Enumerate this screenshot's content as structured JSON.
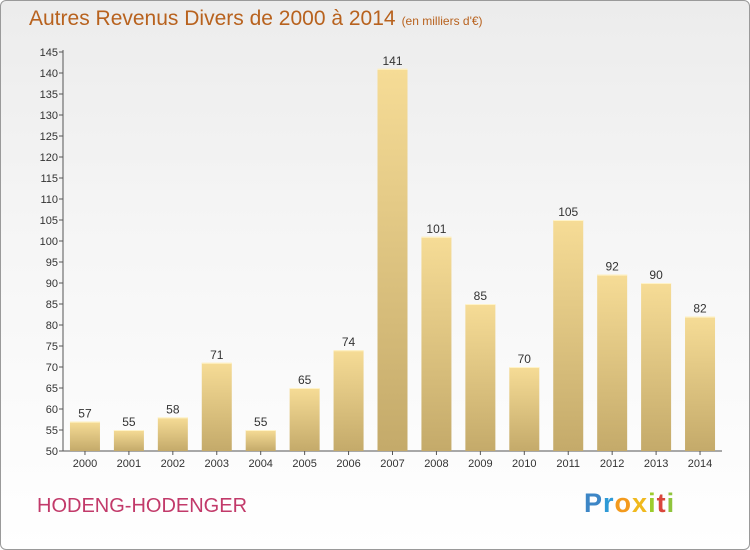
{
  "title": "Autres Revenus Divers de 2000 à 2014",
  "unit": "(en milliers d'€)",
  "commune": "HODENG-HODENGER",
  "logo": "Proxiti",
  "colors": {
    "title": "#b8621e",
    "commune": "#c23a6a",
    "bar_light": "#f6dc96",
    "bar_dark": "#c4aa6a"
  },
  "chart_data": {
    "type": "bar",
    "categories": [
      "2000",
      "2001",
      "2002",
      "2003",
      "2004",
      "2005",
      "2006",
      "2007",
      "2008",
      "2009",
      "2010",
      "2011",
      "2012",
      "2013",
      "2014"
    ],
    "values": [
      57,
      55,
      58,
      71,
      55,
      65,
      74,
      141,
      101,
      85,
      70,
      105,
      92,
      90,
      82
    ],
    "title": "Autres Revenus Divers de 2000 à 2014",
    "xlabel": "",
    "ylabel": "",
    "ylim": [
      50,
      145
    ],
    "yticks": [
      50,
      55,
      60,
      65,
      70,
      75,
      80,
      85,
      90,
      95,
      100,
      105,
      110,
      115,
      120,
      125,
      130,
      135,
      140,
      145
    ],
    "grid": false,
    "legend": "none"
  }
}
